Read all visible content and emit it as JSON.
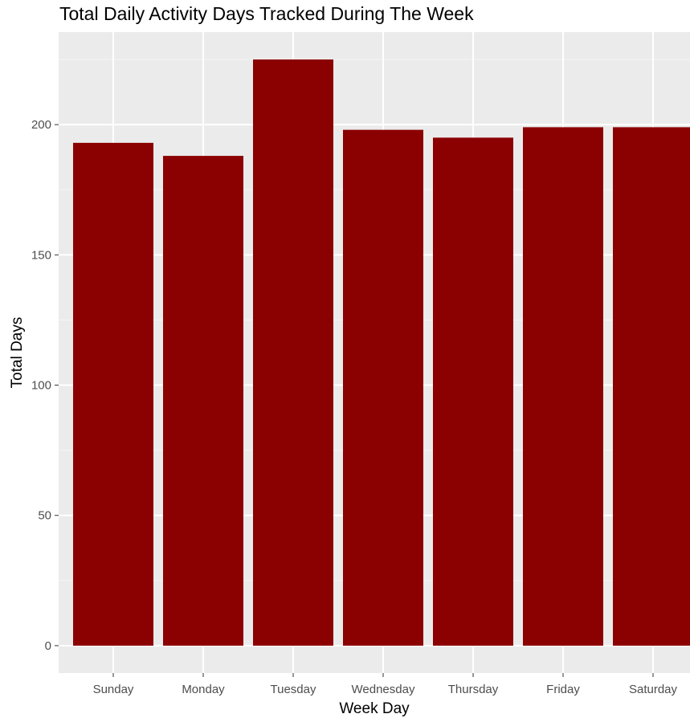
{
  "chart_data": {
    "type": "bar",
    "title": "Total Daily Activity Days Tracked During The Week",
    "xlabel": "Week Day",
    "ylabel": "Total Days",
    "categories": [
      "Sunday",
      "Monday",
      "Tuesday",
      "Wednesday",
      "Thursday",
      "Friday",
      "Saturday"
    ],
    "values": [
      193,
      188,
      225,
      198,
      195,
      199,
      199
    ],
    "yticks": [
      0,
      50,
      100,
      150,
      200
    ],
    "ytick_labels": [
      "0",
      "50",
      "100",
      "150",
      "200"
    ],
    "ylim": [
      -10.5,
      235.5
    ],
    "grid": true,
    "legend": "none",
    "colors": {
      "bar": "#8B0000",
      "panel_background": "#EBEBEB",
      "grid_major": "#FFFFFF",
      "grid_minor": "#F5F5F5",
      "tick_label": "#4D4D4D"
    }
  }
}
